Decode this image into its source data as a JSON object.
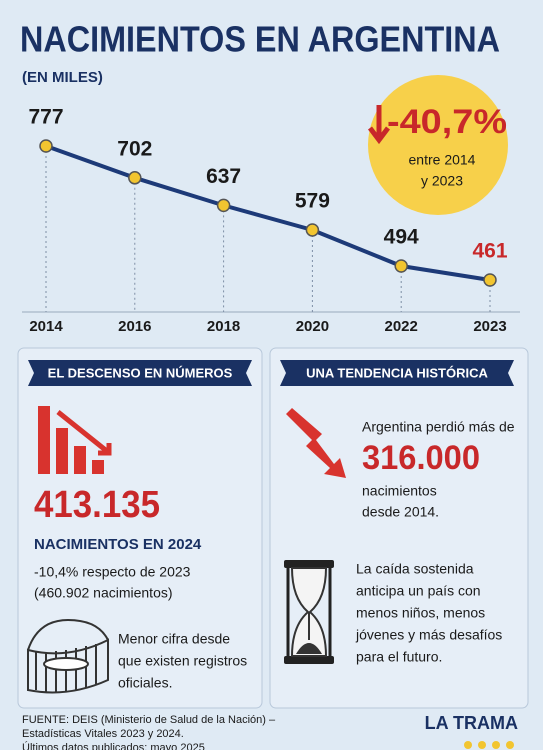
{
  "chart_data": {
    "type": "line",
    "title": "NACIMIENTOS EN ARGENTINA",
    "subtitle": "(EN MILES)",
    "categories": [
      "2014",
      "2016",
      "2018",
      "2020",
      "2022",
      "2023"
    ],
    "series": [
      {
        "name": "Nacimientos",
        "color": "#1d3a78",
        "marker_color": "#f2c530",
        "values": [
          777,
          702,
          637,
          579,
          494,
          461
        ],
        "value_label_colors": [
          "#1a1a1a",
          "#1a1a1a",
          "#1a1a1a",
          "#1a1a1a",
          "#1a1a1a",
          "#c8282a"
        ]
      }
    ],
    "callout": {
      "value": "-40,7%",
      "lines": [
        "entre 2014",
        "y 2023"
      ]
    }
  },
  "left_panel": {
    "header": "EL DESCENSO EN NÚMEROS",
    "big_number": "413.135",
    "big_label": "NACIMIENTOS EN 2024",
    "lines": [
      "-10,4% respecto de 2023",
      "(460.902 nacimientos)"
    ],
    "note": [
      "Menor cifra desde",
      "que existen registros",
      "oficiales."
    ]
  },
  "right_panel": {
    "header": "UNA TENDENCIA HISTÓRICA",
    "intro": "Argentina perdió más de",
    "big_number": "316.000",
    "after": [
      "nacimientos",
      "desde 2014."
    ],
    "note": [
      "La caída sostenida",
      "anticipa un país con",
      "menos niños, menos",
      "jóvenes y más desafíos",
      "para el futuro."
    ]
  },
  "footer": {
    "source": [
      "FUENTE: DEIS (Ministerio de Salud de la Nación) –",
      "Estadísticas Vitales 2023 y 2024.",
      "Últimos datos publicados: mayo 2025"
    ],
    "brand": "LA TRAMA"
  }
}
